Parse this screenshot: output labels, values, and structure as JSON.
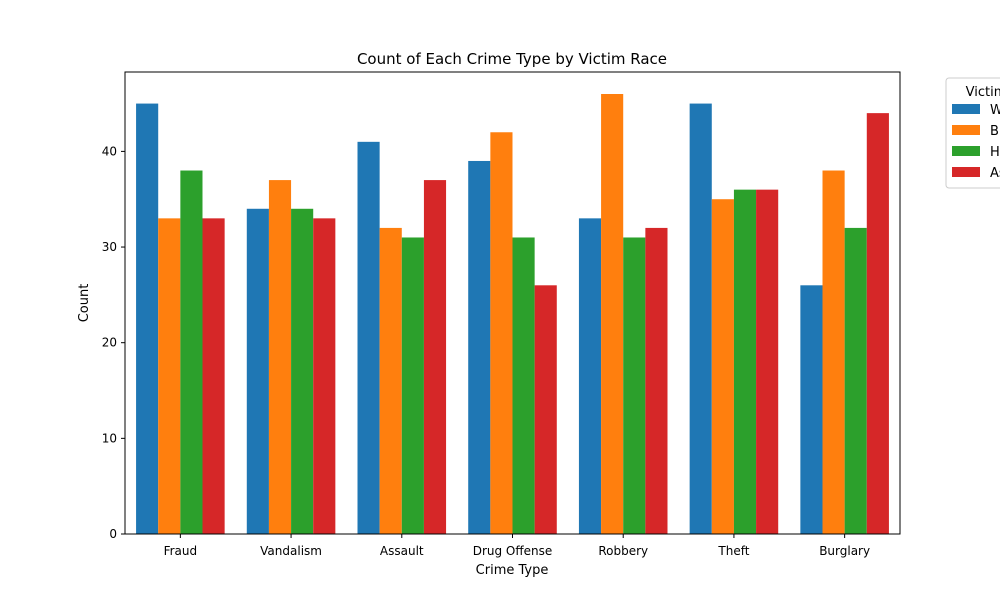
{
  "chart_data": {
    "type": "bar",
    "title": "Count of Each Crime Type by Victim Race",
    "xlabel": "Crime Type",
    "ylabel": "Count",
    "ylim": [
      0,
      48.3
    ],
    "yticks": [
      0,
      10,
      20,
      30,
      40
    ],
    "grid": false,
    "legend_placement": "outside-top-right",
    "legend_title": "Victim",
    "categories": [
      "Fraud",
      "Vandalism",
      "Assault",
      "Drug Offense",
      "Robbery",
      "Theft",
      "Burglary"
    ],
    "series": [
      {
        "name": "W",
        "color": "#1f77b4",
        "values": [
          45,
          34,
          41,
          39,
          33,
          45,
          26
        ]
      },
      {
        "name": "B",
        "color": "#ff7f0e",
        "values": [
          33,
          37,
          32,
          42,
          46,
          35,
          38
        ]
      },
      {
        "name": "H",
        "color": "#2ca02c",
        "values": [
          38,
          34,
          31,
          31,
          31,
          36,
          32
        ]
      },
      {
        "name": "As",
        "color": "#d62728",
        "values": [
          33,
          33,
          37,
          26,
          32,
          36,
          44
        ]
      }
    ]
  }
}
